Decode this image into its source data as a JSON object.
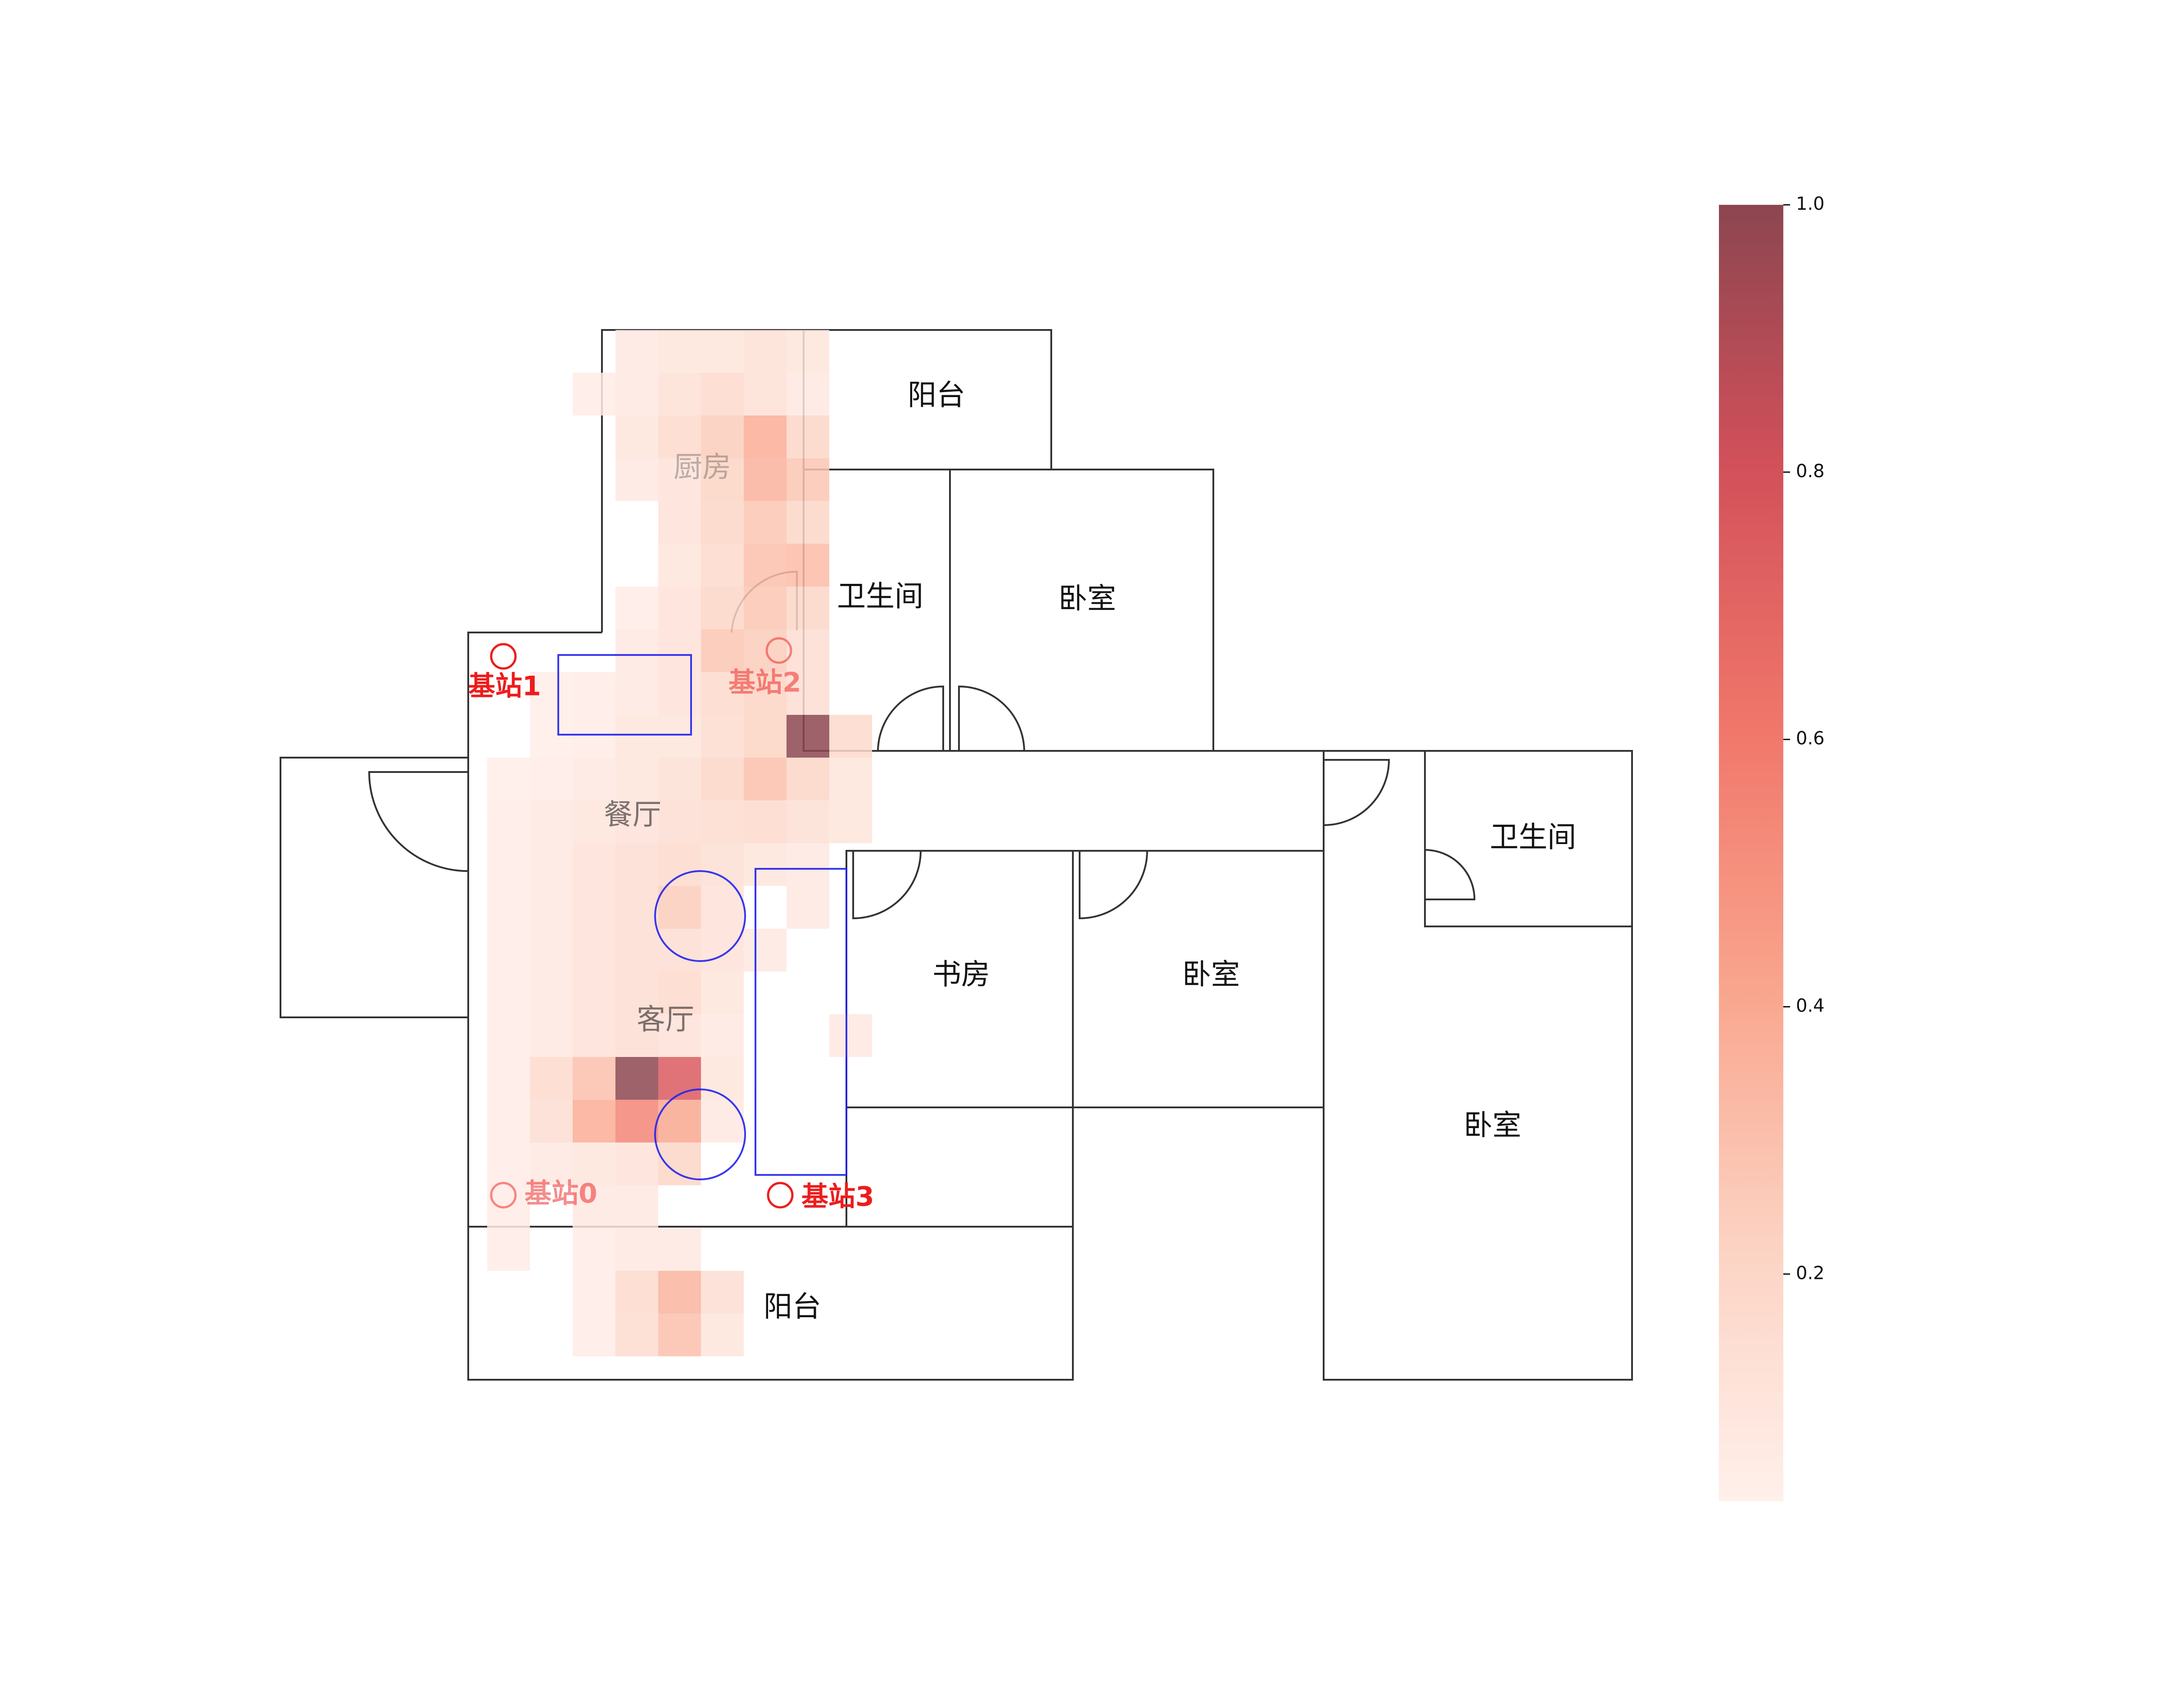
{
  "rooms": [
    {
      "key": "balcony_top",
      "label": "阳台"
    },
    {
      "key": "kitchen",
      "label": "厨房"
    },
    {
      "key": "bathroom_1",
      "label": "卫生间"
    },
    {
      "key": "bedroom_1",
      "label": "卧室"
    },
    {
      "key": "dining",
      "label": "餐厅"
    },
    {
      "key": "living",
      "label": "客厅"
    },
    {
      "key": "study",
      "label": "书房"
    },
    {
      "key": "bedroom_2",
      "label": "卧室"
    },
    {
      "key": "bathroom_2",
      "label": "卫生间"
    },
    {
      "key": "bedroom_3",
      "label": "卧室"
    },
    {
      "key": "balcony_bottom",
      "label": "阳台"
    }
  ],
  "stations": [
    {
      "key": "s0",
      "label": "基站0"
    },
    {
      "key": "s1",
      "label": "基站1"
    },
    {
      "key": "s2",
      "label": "基站2"
    },
    {
      "key": "s3",
      "label": "基站3"
    }
  ],
  "colors": {
    "wall": "#333333",
    "station": "#ee1c1c",
    "furniture": "#2222ee",
    "cmap_low": "#fff0eb",
    "cmap_mid": "#f0766a",
    "cmap_high": "#8c4650"
  },
  "chart_data": {
    "type": "heatmap",
    "colorbar": {
      "range": [
        0.03,
        1.0
      ],
      "ticks": [
        "0.2",
        "0.4",
        "0.6",
        "0.8",
        "1.0"
      ]
    },
    "grid": {
      "columns": 9,
      "rows": 25
    },
    "cells": [
      {
        "c": 1,
        "r": 0,
        "v": 0.08
      },
      {
        "c": 2,
        "r": 0,
        "v": 0.1
      },
      {
        "c": 3,
        "r": 0,
        "v": 0.1
      },
      {
        "c": 4,
        "r": 0,
        "v": 0.13
      },
      {
        "c": 5,
        "r": 0,
        "v": 0.1
      },
      {
        "c": 0,
        "r": 1,
        "v": 0.06
      },
      {
        "c": 1,
        "r": 1,
        "v": 0.08
      },
      {
        "c": 2,
        "r": 1,
        "v": 0.13
      },
      {
        "c": 3,
        "r": 1,
        "v": 0.18
      },
      {
        "c": 4,
        "r": 1,
        "v": 0.13
      },
      {
        "c": 5,
        "r": 1,
        "v": 0.08
      },
      {
        "c": 1,
        "r": 2,
        "v": 0.1
      },
      {
        "c": 2,
        "r": 2,
        "v": 0.18
      },
      {
        "c": 3,
        "r": 2,
        "v": 0.25
      },
      {
        "c": 4,
        "r": 2,
        "v": 0.38
      },
      {
        "c": 5,
        "r": 2,
        "v": 0.2
      },
      {
        "c": 1,
        "r": 3,
        "v": 0.08
      },
      {
        "c": 2,
        "r": 3,
        "v": 0.12
      },
      {
        "c": 3,
        "r": 3,
        "v": 0.22
      },
      {
        "c": 4,
        "r": 3,
        "v": 0.36
      },
      {
        "c": 5,
        "r": 3,
        "v": 0.28
      },
      {
        "c": 2,
        "r": 4,
        "v": 0.12
      },
      {
        "c": 3,
        "r": 4,
        "v": 0.2
      },
      {
        "c": 4,
        "r": 4,
        "v": 0.28
      },
      {
        "c": 5,
        "r": 4,
        "v": 0.2
      },
      {
        "c": 2,
        "r": 5,
        "v": 0.1
      },
      {
        "c": 3,
        "r": 5,
        "v": 0.18
      },
      {
        "c": 4,
        "r": 5,
        "v": 0.3
      },
      {
        "c": 5,
        "r": 5,
        "v": 0.32
      },
      {
        "c": 1,
        "r": 6,
        "v": 0.06
      },
      {
        "c": 2,
        "r": 6,
        "v": 0.12
      },
      {
        "c": 3,
        "r": 6,
        "v": 0.2
      },
      {
        "c": 4,
        "r": 6,
        "v": 0.28
      },
      {
        "c": 5,
        "r": 6,
        "v": 0.2
      },
      {
        "c": 1,
        "r": 7,
        "v": 0.08
      },
      {
        "c": 2,
        "r": 7,
        "v": 0.12
      },
      {
        "c": 3,
        "r": 7,
        "v": 0.28
      },
      {
        "c": 4,
        "r": 7,
        "v": 0.25
      },
      {
        "c": 5,
        "r": 7,
        "v": 0.15
      },
      {
        "c": -1,
        "r": 8,
        "v": 0.05
      },
      {
        "c": 0,
        "r": 8,
        "v": 0.06
      },
      {
        "c": 1,
        "r": 8,
        "v": 0.08
      },
      {
        "c": 2,
        "r": 8,
        "v": 0.12
      },
      {
        "c": 3,
        "r": 8,
        "v": 0.18
      },
      {
        "c": 4,
        "r": 8,
        "v": 0.22
      },
      {
        "c": 5,
        "r": 8,
        "v": 0.15
      },
      {
        "c": -1,
        "r": 9,
        "v": 0.05
      },
      {
        "c": 0,
        "r": 9,
        "v": 0.06
      },
      {
        "c": 1,
        "r": 9,
        "v": 0.1
      },
      {
        "c": 2,
        "r": 9,
        "v": 0.1
      },
      {
        "c": 3,
        "r": 9,
        "v": 0.16
      },
      {
        "c": 4,
        "r": 9,
        "v": 0.22
      },
      {
        "c": 5,
        "r": 9,
        "v": 1.0
      },
      {
        "c": 6,
        "r": 9,
        "v": 0.18
      },
      {
        "c": -2,
        "r": 10,
        "v": 0.05
      },
      {
        "c": -1,
        "r": 10,
        "v": 0.06
      },
      {
        "c": 0,
        "r": 10,
        "v": 0.08
      },
      {
        "c": 1,
        "r": 10,
        "v": 0.1
      },
      {
        "c": 2,
        "r": 10,
        "v": 0.14
      },
      {
        "c": 3,
        "r": 10,
        "v": 0.2
      },
      {
        "c": 4,
        "r": 10,
        "v": 0.3
      },
      {
        "c": 5,
        "r": 10,
        "v": 0.2
      },
      {
        "c": 6,
        "r": 10,
        "v": 0.1
      },
      {
        "c": -2,
        "r": 11,
        "v": 0.06
      },
      {
        "c": -1,
        "r": 11,
        "v": 0.08
      },
      {
        "c": 0,
        "r": 11,
        "v": 0.1
      },
      {
        "c": 1,
        "r": 11,
        "v": 0.12
      },
      {
        "c": 2,
        "r": 11,
        "v": 0.15
      },
      {
        "c": 3,
        "r": 11,
        "v": 0.16
      },
      {
        "c": 4,
        "r": 11,
        "v": 0.18
      },
      {
        "c": 5,
        "r": 11,
        "v": 0.14
      },
      {
        "c": 6,
        "r": 11,
        "v": 0.1
      },
      {
        "c": -2,
        "r": 12,
        "v": 0.06
      },
      {
        "c": -1,
        "r": 12,
        "v": 0.08
      },
      {
        "c": 0,
        "r": 12,
        "v": 0.12
      },
      {
        "c": 1,
        "r": 12,
        "v": 0.15
      },
      {
        "c": 2,
        "r": 12,
        "v": 0.18
      },
      {
        "c": 3,
        "r": 12,
        "v": 0.14
      },
      {
        "c": 4,
        "r": 12,
        "v": 0.1
      },
      {
        "c": 5,
        "r": 12,
        "v": 0.08
      },
      {
        "c": -2,
        "r": 13,
        "v": 0.06
      },
      {
        "c": -1,
        "r": 13,
        "v": 0.08
      },
      {
        "c": 0,
        "r": 13,
        "v": 0.12
      },
      {
        "c": 1,
        "r": 13,
        "v": 0.15
      },
      {
        "c": 2,
        "r": 13,
        "v": 0.25
      },
      {
        "c": 3,
        "r": 13,
        "v": 0.12
      },
      {
        "c": 5,
        "r": 13,
        "v": 0.08
      },
      {
        "c": -2,
        "r": 14,
        "v": 0.06
      },
      {
        "c": -1,
        "r": 14,
        "v": 0.08
      },
      {
        "c": 0,
        "r": 14,
        "v": 0.12
      },
      {
        "c": 1,
        "r": 14,
        "v": 0.15
      },
      {
        "c": 2,
        "r": 14,
        "v": 0.15
      },
      {
        "c": 3,
        "r": 14,
        "v": 0.12
      },
      {
        "c": 4,
        "r": 14,
        "v": 0.08
      },
      {
        "c": -2,
        "r": 15,
        "v": 0.06
      },
      {
        "c": -1,
        "r": 15,
        "v": 0.08
      },
      {
        "c": 0,
        "r": 15,
        "v": 0.12
      },
      {
        "c": 1,
        "r": 15,
        "v": 0.15
      },
      {
        "c": 2,
        "r": 15,
        "v": 0.18
      },
      {
        "c": 3,
        "r": 15,
        "v": 0.1
      },
      {
        "c": -2,
        "r": 16,
        "v": 0.06
      },
      {
        "c": -1,
        "r": 16,
        "v": 0.08
      },
      {
        "c": 0,
        "r": 16,
        "v": 0.12
      },
      {
        "c": 1,
        "r": 16,
        "v": 0.15
      },
      {
        "c": 2,
        "r": 16,
        "v": 0.12
      },
      {
        "c": 3,
        "r": 16,
        "v": 0.08
      },
      {
        "c": 6,
        "r": 16,
        "v": 0.08
      },
      {
        "c": -2,
        "r": 17,
        "v": 0.06
      },
      {
        "c": -1,
        "r": 17,
        "v": 0.18
      },
      {
        "c": 0,
        "r": 17,
        "v": 0.3
      },
      {
        "c": 1,
        "r": 17,
        "v": 1.0
      },
      {
        "c": 2,
        "r": 17,
        "v": 0.75
      },
      {
        "c": 3,
        "r": 17,
        "v": 0.1
      },
      {
        "c": -2,
        "r": 18,
        "v": 0.06
      },
      {
        "c": -1,
        "r": 18,
        "v": 0.15
      },
      {
        "c": 0,
        "r": 18,
        "v": 0.38
      },
      {
        "c": 1,
        "r": 18,
        "v": 0.55
      },
      {
        "c": 2,
        "r": 18,
        "v": 0.4
      },
      {
        "c": 3,
        "r": 18,
        "v": 0.08
      },
      {
        "c": -2,
        "r": 19,
        "v": 0.06
      },
      {
        "c": -1,
        "r": 19,
        "v": 0.08
      },
      {
        "c": 0,
        "r": 19,
        "v": 0.1
      },
      {
        "c": 1,
        "r": 19,
        "v": 0.12
      },
      {
        "c": 2,
        "r": 19,
        "v": 0.2
      },
      {
        "c": -2,
        "r": 20,
        "v": 0.06
      },
      {
        "c": 0,
        "r": 20,
        "v": 0.08
      },
      {
        "c": 1,
        "r": 20,
        "v": 0.08
      },
      {
        "c": -2,
        "r": 21,
        "v": 0.06
      },
      {
        "c": 0,
        "r": 21,
        "v": 0.06
      },
      {
        "c": 1,
        "r": 21,
        "v": 0.08
      },
      {
        "c": 2,
        "r": 21,
        "v": 0.08
      },
      {
        "c": 0,
        "r": 22,
        "v": 0.06
      },
      {
        "c": 1,
        "r": 22,
        "v": 0.18
      },
      {
        "c": 2,
        "r": 22,
        "v": 0.35
      },
      {
        "c": 3,
        "r": 22,
        "v": 0.15
      },
      {
        "c": 0,
        "r": 23,
        "v": 0.06
      },
      {
        "c": 1,
        "r": 23,
        "v": 0.16
      },
      {
        "c": 2,
        "r": 23,
        "v": 0.3
      },
      {
        "c": 3,
        "r": 23,
        "v": 0.1
      }
    ]
  }
}
